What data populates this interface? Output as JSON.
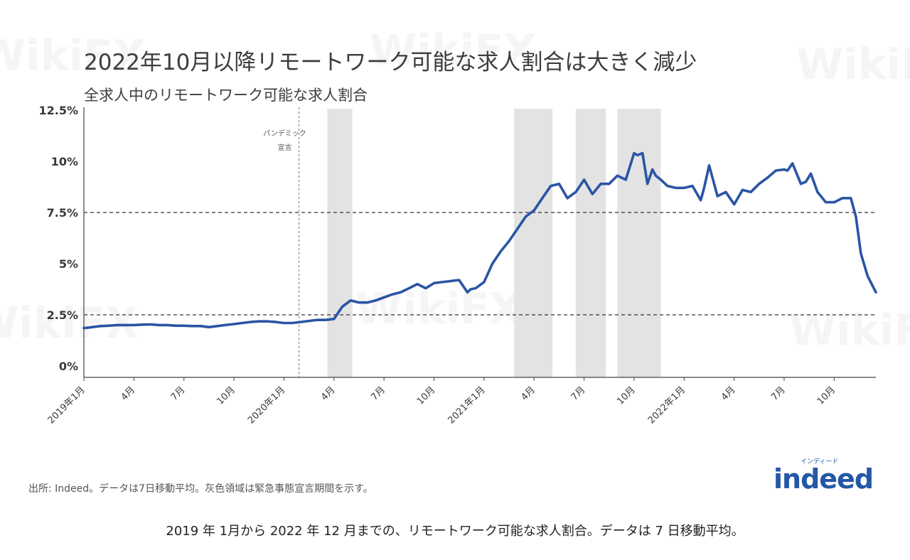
{
  "header": {
    "title": "2022年10月以降リモートワーク可能な求人割合は大きく減少",
    "subtitle": "全求人中のリモートワーク可能な求人割合"
  },
  "footer": {
    "source": "出所: Indeed。データは7日移動平均。灰色領域は緊急事態宣言期間を示す。",
    "caption": "2019 年 1月から 2022 年 12 月までの、リモートワーク可能な求人割合。データは 7 日移動平均。"
  },
  "logo": {
    "word": "indeed",
    "kana": "インディード"
  },
  "watermark": {
    "text": "WikiFX"
  },
  "colors": {
    "line": "#2a55a5",
    "band": "#e3e3e3",
    "reference": "#333333",
    "brand": "#2557a7"
  },
  "chart_data": {
    "type": "line",
    "title": "2022年10月以降リモートワーク可能な求人割合は大きく減少",
    "subtitle": "全求人中のリモートワーク可能な求人割合",
    "x_unit": "months since 2019年1月",
    "xlim": [
      0,
      47.5
    ],
    "ylim": [
      0,
      12.5
    ],
    "y_ticks": [
      {
        "value": 0,
        "label": "0%"
      },
      {
        "value": 2.5,
        "label": "2.5%"
      },
      {
        "value": 5,
        "label": "5%"
      },
      {
        "value": 7.5,
        "label": "7.5%"
      },
      {
        "value": 10,
        "label": "10%"
      },
      {
        "value": 12.5,
        "label": "12.5%"
      }
    ],
    "x_ticks": [
      {
        "value": 0,
        "label": "2019年1月"
      },
      {
        "value": 3,
        "label": "4月"
      },
      {
        "value": 6,
        "label": "7月"
      },
      {
        "value": 9,
        "label": "10月"
      },
      {
        "value": 12,
        "label": "2020年1月"
      },
      {
        "value": 15,
        "label": "4月"
      },
      {
        "value": 18,
        "label": "7月"
      },
      {
        "value": 21,
        "label": "10月"
      },
      {
        "value": 24,
        "label": "2021年1月"
      },
      {
        "value": 27,
        "label": "4月"
      },
      {
        "value": 30,
        "label": "7月"
      },
      {
        "value": 33,
        "label": "10月"
      },
      {
        "value": 36,
        "label": "2022年1月"
      },
      {
        "value": 39,
        "label": "4月"
      },
      {
        "value": 42,
        "label": "7月"
      },
      {
        "value": 45,
        "label": "10月"
      }
    ],
    "reference_lines": [
      2.5,
      7.5
    ],
    "annotation": {
      "x": 12.9,
      "lines": [
        "パンデミック",
        "宣言"
      ]
    },
    "shaded_periods": [
      [
        14.6,
        16.1
      ],
      [
        25.8,
        28.1
      ],
      [
        29.5,
        31.3
      ],
      [
        32.0,
        34.6
      ]
    ],
    "series": [
      {
        "x": [
          0,
          0.5,
          1,
          1.5,
          2,
          2.5,
          3,
          3.5,
          4,
          4.5,
          5,
          5.5,
          6,
          6.5,
          7,
          7.5,
          8,
          8.5,
          9,
          9.5,
          10,
          10.5,
          11,
          11.5,
          12,
          12.5,
          13,
          13.5,
          14,
          14.5,
          15,
          15.5,
          16,
          16.5,
          17,
          17.5,
          18,
          18.5,
          19,
          19.5,
          20,
          20.5,
          21,
          21.5,
          22,
          22.5,
          23,
          23.2,
          23.5,
          24,
          24.5,
          25,
          25.5,
          26,
          26.5,
          27,
          27.5,
          28,
          28.5,
          29,
          29.5,
          30,
          30.5,
          31,
          31.5,
          32,
          32.5,
          33,
          33.2,
          33.5,
          33.8,
          34.1,
          34.3,
          34.6,
          35,
          35.5,
          36,
          36.5,
          37,
          37.2,
          37.5,
          38,
          38.5,
          39,
          39.5,
          40,
          40.5,
          41,
          41.5,
          42,
          42.2,
          42.5,
          43,
          43.3,
          43.6,
          44,
          44.5,
          45,
          45.5,
          46,
          46.3,
          46.6,
          47,
          47.5
        ],
        "y": [
          1.85,
          1.9,
          1.95,
          1.97,
          2.0,
          2.0,
          2.0,
          2.02,
          2.03,
          2.0,
          2.0,
          1.97,
          1.97,
          1.95,
          1.95,
          1.9,
          1.95,
          2.0,
          2.05,
          2.1,
          2.15,
          2.18,
          2.18,
          2.15,
          2.1,
          2.1,
          2.15,
          2.2,
          2.25,
          2.25,
          2.3,
          2.9,
          3.2,
          3.1,
          3.1,
          3.2,
          3.35,
          3.5,
          3.6,
          3.8,
          4.0,
          3.8,
          4.05,
          4.1,
          4.15,
          4.2,
          3.6,
          3.75,
          3.8,
          4.1,
          5.0,
          5.6,
          6.1,
          6.7,
          7.3,
          7.6,
          8.2,
          8.8,
          8.9,
          8.2,
          8.5,
          9.1,
          8.4,
          8.9,
          8.9,
          9.3,
          9.1,
          10.4,
          10.3,
          10.4,
          8.9,
          9.6,
          9.3,
          9.1,
          8.8,
          8.7,
          8.7,
          8.8,
          8.1,
          8.7,
          9.8,
          8.3,
          8.5,
          7.9,
          8.6,
          8.5,
          8.9,
          9.2,
          9.55,
          9.6,
          9.55,
          9.9,
          8.9,
          9.0,
          9.4,
          8.5,
          8.0,
          8.0,
          8.2,
          8.2,
          7.3,
          5.5,
          4.4,
          3.6
        ]
      }
    ]
  }
}
